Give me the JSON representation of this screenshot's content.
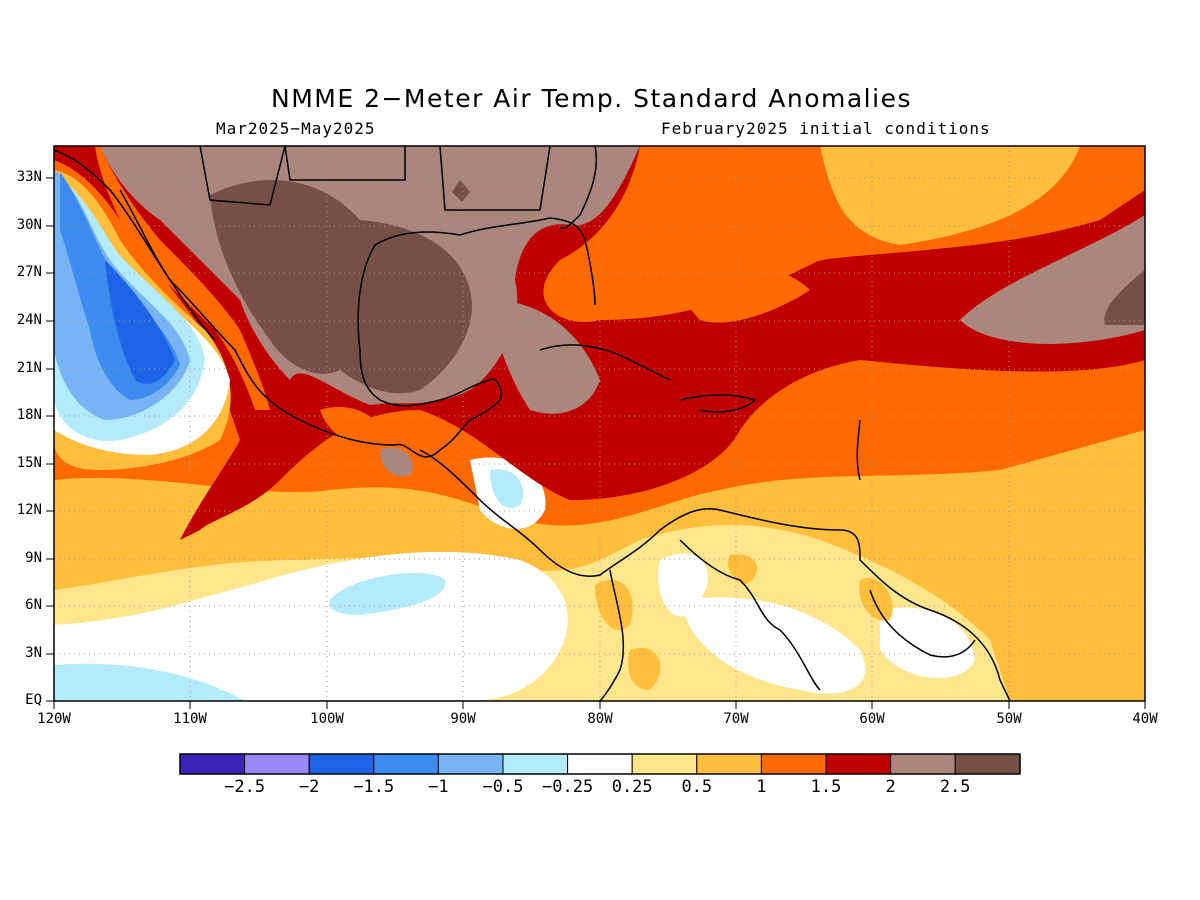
{
  "title": "NMME 2−Meter Air Temp. Standard Anomalies",
  "subtitle_left": "Mar2025−May2025",
  "subtitle_right": "February2025 initial conditions",
  "lat_labels": [
    "33N",
    "30N",
    "27N",
    "24N",
    "21N",
    "18N",
    "15N",
    "12N",
    "9N",
    "6N",
    "3N",
    "EQ"
  ],
  "lon_labels": [
    "120W",
    "110W",
    "100W",
    "90W",
    "80W",
    "70W",
    "60W",
    "50W",
    "40W"
  ],
  "colorbar": {
    "colors": [
      "#3b22b8",
      "#9b87f5",
      "#1e64e6",
      "#3c8cf0",
      "#78b4f5",
      "#b4ebfa",
      "#ffffff",
      "#ffe68c",
      "#ffbe3c",
      "#ff6a00",
      "#c00000",
      "#ab867c",
      "#765047"
    ],
    "labels": [
      "−2.5",
      "−2",
      "−1.5",
      "−1",
      "−0.5",
      "−0.25",
      "0.25",
      "0.5",
      "1",
      "1.5",
      "2",
      "2.5"
    ]
  }
}
